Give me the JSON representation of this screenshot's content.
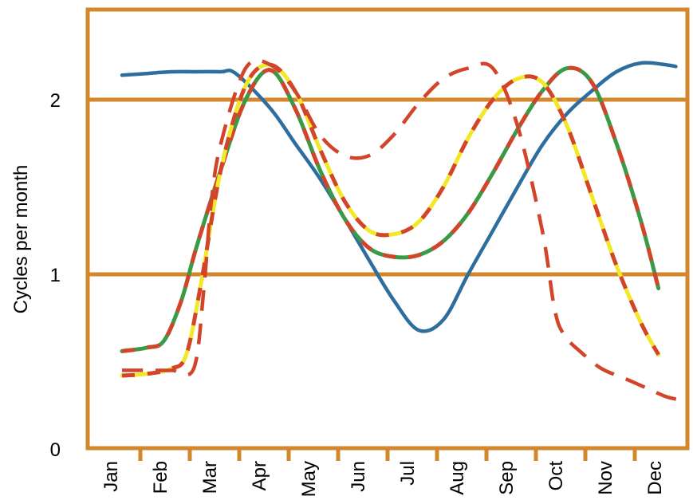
{
  "chart_data": {
    "type": "line",
    "title": "",
    "xlabel": "",
    "ylabel": "Cycles per month",
    "categories": [
      "Jan",
      "Feb",
      "Mar",
      "Apr",
      "May",
      "Jun",
      "Jul",
      "Aug",
      "Sep",
      "Oct",
      "Nov",
      "Dec"
    ],
    "ylim": [
      0,
      2.5
    ],
    "yticks": [
      0,
      1,
      2
    ],
    "grid": "horizontal lines at 1 and 2",
    "colors": {
      "frame": "#D4872A",
      "blue": "#2E6E9E",
      "green": "#3A9A48",
      "red": "#D2452A",
      "yellow": "#F2E82A"
    },
    "series": [
      {
        "style": "solid blue",
        "color": "#2E6E9E",
        "x": [
          0.0,
          0.5,
          1.0,
          1.5,
          2.0,
          2.3,
          3.0,
          3.5,
          4.0,
          4.5,
          5.0,
          5.5,
          6.0,
          6.5,
          7.0,
          7.5,
          8.0,
          8.5,
          9.0,
          9.5,
          10.0,
          10.5,
          11.0,
          11.2
        ],
        "y": [
          2.14,
          2.15,
          2.16,
          2.16,
          2.16,
          2.15,
          1.95,
          1.75,
          1.55,
          1.32,
          1.08,
          0.85,
          0.68,
          0.74,
          1.0,
          1.25,
          1.5,
          1.74,
          1.92,
          2.05,
          2.16,
          2.21,
          2.2,
          2.19
        ]
      },
      {
        "style": "green-and-red striped",
        "colors": [
          "#3A9A48",
          "#D2452A"
        ],
        "x": [
          0.0,
          0.5,
          0.85,
          1.2,
          1.5,
          2.0,
          2.5,
          3.0,
          3.5,
          4.0,
          4.5,
          5.0,
          5.5,
          6.0,
          6.5,
          7.0,
          7.5,
          8.0,
          8.5,
          9.0,
          9.5,
          10.0,
          10.5,
          10.85
        ],
        "y": [
          0.56,
          0.58,
          0.62,
          0.85,
          1.15,
          1.6,
          2.0,
          2.17,
          1.95,
          1.6,
          1.32,
          1.15,
          1.1,
          1.11,
          1.19,
          1.35,
          1.58,
          1.83,
          2.05,
          2.18,
          2.1,
          1.75,
          1.3,
          0.92
        ]
      },
      {
        "style": "yellow-and-red striped",
        "colors": [
          "#F2E82A",
          "#D2452A"
        ],
        "x": [
          0.0,
          0.5,
          1.0,
          1.3,
          1.6,
          2.0,
          2.5,
          3.0,
          3.5,
          4.0,
          4.5,
          5.0,
          5.5,
          6.0,
          6.5,
          7.0,
          7.5,
          8.0,
          8.5,
          9.0,
          9.5,
          10.0,
          10.5,
          10.85
        ],
        "y": [
          0.42,
          0.43,
          0.46,
          0.54,
          0.95,
          1.6,
          2.08,
          2.2,
          2.05,
          1.72,
          1.42,
          1.25,
          1.23,
          1.3,
          1.5,
          1.78,
          2.0,
          2.12,
          2.1,
          1.85,
          1.45,
          1.05,
          0.72,
          0.54
        ]
      },
      {
        "style": "red dashed",
        "color": "#D2452A",
        "x": [
          0.0,
          0.5,
          1.0,
          1.45,
          1.65,
          1.8,
          2.0,
          2.5,
          3.0,
          3.5,
          4.0,
          4.5,
          5.0,
          5.5,
          6.0,
          6.5,
          7.0,
          7.5,
          8.0,
          8.5,
          8.75,
          8.95,
          9.3,
          9.7,
          10.2,
          10.6,
          11.0,
          11.3
        ],
        "y": [
          0.45,
          0.45,
          0.45,
          0.46,
          0.9,
          1.4,
          1.75,
          2.18,
          2.2,
          2.05,
          1.8,
          1.68,
          1.68,
          1.8,
          1.98,
          2.12,
          2.18,
          2.18,
          1.85,
          1.25,
          0.8,
          0.65,
          0.55,
          0.46,
          0.4,
          0.35,
          0.3,
          0.28
        ]
      }
    ]
  }
}
